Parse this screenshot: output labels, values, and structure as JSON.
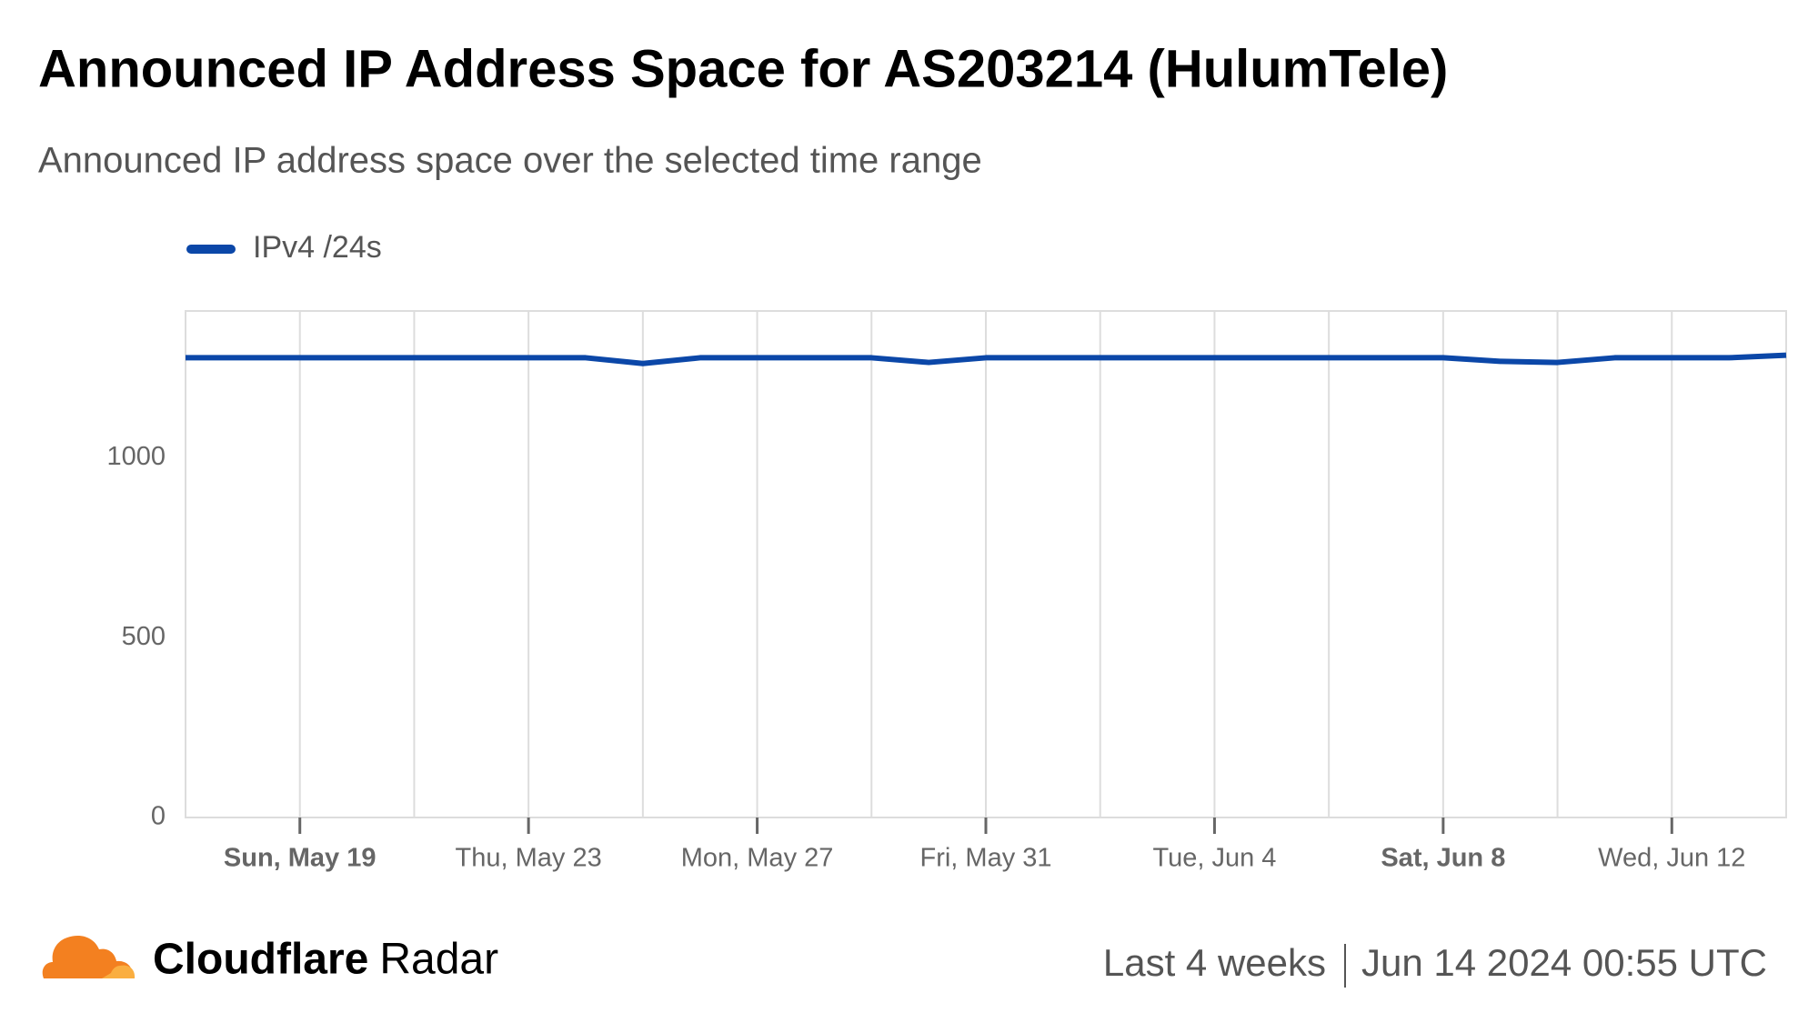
{
  "chart_data": {
    "type": "line",
    "title": "Announced IP Address Space for AS203214 (HulumTele)",
    "subtitle": "Announced IP address space over the selected time range",
    "categories": [
      null,
      null,
      "Sun, May 19",
      null,
      null,
      null,
      "Thu, May 23",
      null,
      null,
      null,
      "Mon, May 27",
      null,
      null,
      null,
      "Fri, May 31",
      null,
      null,
      null,
      "Tue, Jun 4",
      null,
      null,
      null,
      "Sat, Jun 8",
      null,
      null,
      null,
      "Wed, Jun 12",
      null,
      null
    ],
    "series": [
      {
        "name": "IPv4 /24s",
        "color": "#0b47a8",
        "values": [
          1278,
          1278,
          1278,
          1278,
          1278,
          1278,
          1278,
          1278,
          1262,
          1278,
          1278,
          1278,
          1278,
          1265,
          1278,
          1278,
          1278,
          1278,
          1278,
          1278,
          1278,
          1278,
          1278,
          1268,
          1265,
          1278,
          1278,
          1278,
          1285
        ]
      }
    ],
    "ylim": [
      0,
      1408
    ],
    "yticks": [
      0,
      500,
      1000
    ],
    "grid": true,
    "legend": "top-left"
  },
  "footer": {
    "brand": "Cloudflare",
    "product": "Radar",
    "range": "Last 4 weeks",
    "timestamp": "Jun 14 2024 00:55 UTC"
  }
}
